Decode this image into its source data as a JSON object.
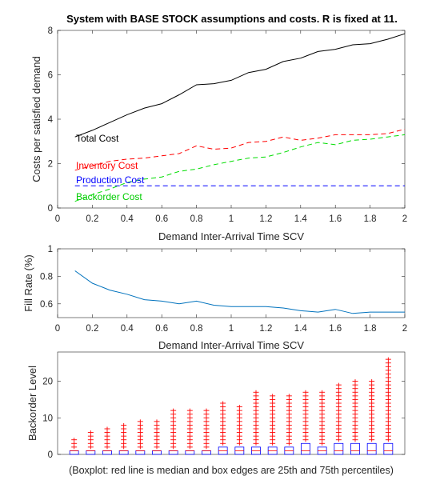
{
  "figure_title": "System with BASE STOCK assumptions and costs.  R is fixed at 11.",
  "caption": "(Boxplot: red line is median and box edges are 25th and 75th percentiles)",
  "colors": {
    "total": "#000000",
    "inventory": "#ff0000",
    "production": "#0000ff",
    "backorder": "#00dd00",
    "fill": "#0072bd",
    "box": "#0000ff",
    "outlier": "#ff0000",
    "median": "#ff0000"
  },
  "chart_data": [
    {
      "type": "line",
      "xlabel": "Demand Inter-Arrival Time SCV",
      "ylabel": "Costs per satisfied demand",
      "xlim": [
        0,
        2
      ],
      "ylim": [
        0,
        8
      ],
      "xticks": [
        "0",
        "0.2",
        "0.4",
        "0.6",
        "0.8",
        "1",
        "1.2",
        "1.4",
        "1.6",
        "1.8",
        "2"
      ],
      "yticks": [
        "0",
        "2",
        "4",
        "6",
        "8"
      ],
      "x": [
        0.1,
        0.2,
        0.3,
        0.4,
        0.5,
        0.6,
        0.7,
        0.8,
        0.9,
        1.0,
        1.1,
        1.2,
        1.3,
        1.4,
        1.5,
        1.6,
        1.7,
        1.8,
        1.9,
        2.0
      ],
      "series": [
        {
          "name": "Total Cost",
          "style": "solid",
          "values": [
            3.2,
            3.5,
            3.85,
            4.2,
            4.5,
            4.7,
            5.1,
            5.55,
            5.6,
            5.75,
            6.1,
            6.25,
            6.6,
            6.75,
            7.05,
            7.15,
            7.35,
            7.4,
            7.6,
            7.85
          ]
        },
        {
          "name": "Inventory Cost",
          "style": "dashed",
          "values": [
            1.7,
            1.9,
            2.1,
            2.2,
            2.25,
            2.35,
            2.45,
            2.8,
            2.65,
            2.7,
            2.95,
            3.0,
            3.2,
            3.05,
            3.15,
            3.3,
            3.3,
            3.3,
            3.35,
            3.55
          ]
        },
        {
          "name": "Production Cost",
          "style": "dashed",
          "values": [
            1.0,
            1.0,
            1.0,
            1.0,
            1.0,
            1.0,
            1.0,
            1.0,
            1.0,
            1.0,
            1.0,
            1.0,
            1.0,
            1.0,
            1.0,
            1.0,
            1.0,
            1.0,
            1.0,
            1.0
          ]
        },
        {
          "name": "Backorder Cost",
          "style": "dashed",
          "values": [
            0.3,
            0.6,
            0.85,
            1.15,
            1.3,
            1.4,
            1.65,
            1.75,
            1.95,
            2.1,
            2.25,
            2.3,
            2.5,
            2.75,
            2.95,
            2.85,
            3.05,
            3.1,
            3.2,
            3.3
          ]
        }
      ]
    },
    {
      "type": "line",
      "xlabel": "Demand Inter-Arrival Time SCV",
      "ylabel": "Fill Rate (%)",
      "xlim": [
        0,
        2
      ],
      "ylim": [
        0.5,
        1
      ],
      "xticks": [
        "0",
        "0.2",
        "0.4",
        "0.6",
        "0.8",
        "1",
        "1.2",
        "1.4",
        "1.6",
        "1.8",
        "2"
      ],
      "yticks": [
        "0.6",
        "0.8",
        "1"
      ],
      "x": [
        0.1,
        0.2,
        0.3,
        0.4,
        0.5,
        0.6,
        0.7,
        0.8,
        0.9,
        1.0,
        1.1,
        1.2,
        1.3,
        1.4,
        1.5,
        1.6,
        1.7,
        1.8,
        1.9,
        2.0
      ],
      "series": [
        {
          "values": [
            0.84,
            0.75,
            0.7,
            0.67,
            0.63,
            0.62,
            0.6,
            0.62,
            0.59,
            0.58,
            0.58,
            0.58,
            0.57,
            0.55,
            0.54,
            0.56,
            0.53,
            0.54,
            0.54,
            0.54
          ]
        }
      ]
    },
    {
      "type": "boxplot",
      "ylabel": "Backorder Level",
      "ylim": [
        0,
        28
      ],
      "yticks": [
        "0",
        "10",
        "20"
      ],
      "groups": 20,
      "q1": [
        0,
        0,
        0,
        0,
        0,
        0,
        0,
        0,
        0,
        0,
        0,
        0,
        0,
        0,
        0,
        0,
        0,
        0,
        0,
        0
      ],
      "median": [
        1,
        1,
        1,
        1,
        1,
        1,
        1,
        1,
        1,
        1,
        1,
        1,
        1,
        1,
        1,
        1,
        1,
        1,
        1,
        1
      ],
      "q3": [
        1,
        1,
        1,
        1,
        1,
        1,
        1,
        1,
        1,
        2,
        2,
        2,
        2,
        2,
        3,
        2,
        3,
        3,
        3,
        3
      ],
      "max_outlier": [
        4,
        6,
        7,
        8,
        9,
        9,
        12,
        12,
        12,
        14,
        13,
        17,
        16,
        16,
        17,
        17,
        19,
        20,
        20,
        26
      ]
    }
  ]
}
